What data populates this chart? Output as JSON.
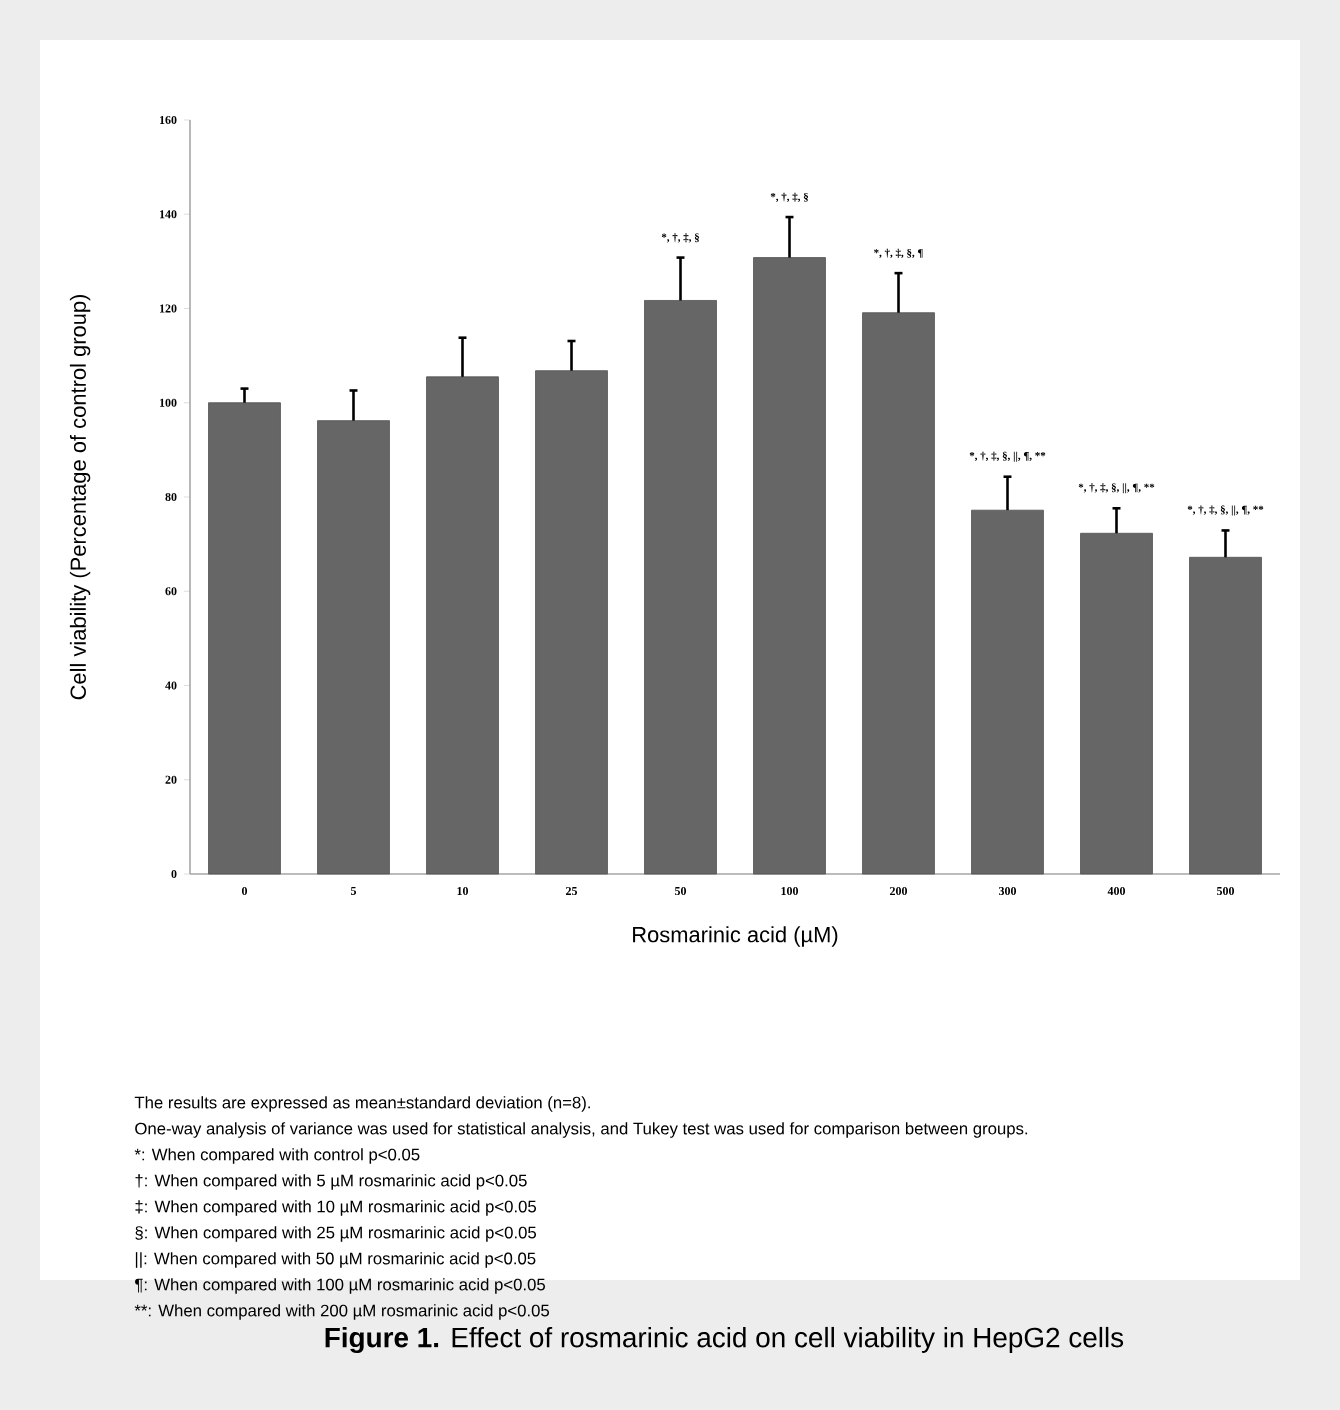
{
  "chart_data": {
    "type": "bar",
    "title": "**Figure 1.** Effect of rosmarinic acid on cell viability in HepG2 cells",
    "xlabel": "Rosmarinic acid (µM)",
    "ylabel": "Cell viability (Percentage of control group)",
    "categories": [
      "0",
      "5",
      "10",
      "25",
      "50",
      "100",
      "200",
      "300",
      "400",
      "500"
    ],
    "values": [
      100,
      96.2,
      105.5,
      106.8,
      121.7,
      130.8,
      119.1,
      77.2,
      72.3,
      67.2
    ],
    "errors": [
      3,
      6.4,
      8.3,
      6.3,
      9.1,
      8.6,
      8.4,
      7.1,
      5.3,
      5.7
    ],
    "color": "#666666",
    "ylim": [
      0,
      160
    ],
    "yticks": [
      0,
      20,
      40,
      60,
      80,
      100,
      120,
      140,
      160
    ],
    "grid": false,
    "annotations": [
      {
        "text": "*, †, ‡, §",
        "x": "50",
        "y": 130.8
      },
      {
        "text": "*, †, ‡, §",
        "x": "100",
        "y": 139.4
      },
      {
        "text": "*, †, ‡, §, ¶",
        "x": "200",
        "y": 127.5
      },
      {
        "text": "*, †, ‡, §, ||, ¶, **",
        "x": "300",
        "y": 84.3
      },
      {
        "text": "*, †, ‡, §, ||, ¶, **",
        "x": "400",
        "y": 77.6
      },
      {
        "text": "*, †, ‡, §, ||, ¶, **",
        "x": "500",
        "y": 72.9
      },
      "The results are expressed as mean±standard deviation (n=8).",
      "One-way analysis of variance was used for statistical analysis, and Tukey test was used for comparison between groups.",
      "*: When compared with control p<0.05",
      "†: When compared with 5 µM rosmarinic acid p<0.05",
      "‡: When compared with 10 µM rosmarinic acid p<0.05",
      "§: When compared with 25 µM rosmarinic acid p<0.05",
      "||: When compared with 50 µM rosmarinic acid p<0.05",
      "¶: When compared with 100 µM rosmarinic acid p<0.05",
      "**: When compared with 200 µM rosmarinic acid p<0.05"
    ]
  }
}
